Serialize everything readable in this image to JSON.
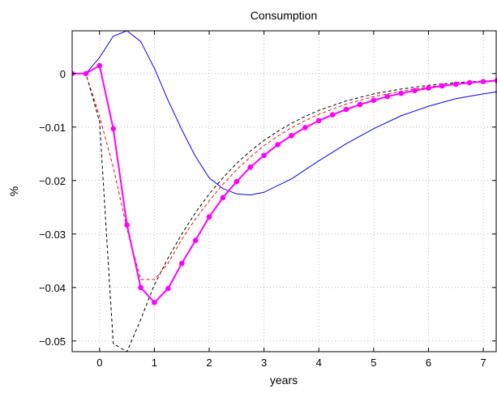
{
  "chart_data": {
    "type": "line",
    "title": "Consumption",
    "xlabel": "years",
    "ylabel": "%",
    "xlim": [
      -0.5,
      7.25
    ],
    "ylim": [
      -0.052,
      0.008
    ],
    "x_ticks": [
      0,
      1,
      2,
      3,
      4,
      5,
      6,
      7
    ],
    "x_tick_labels": [
      "0",
      "1",
      "2",
      "3",
      "4",
      "5",
      "6",
      "7"
    ],
    "y_ticks": [
      0,
      -0.01,
      -0.02,
      -0.03,
      -0.04,
      -0.05
    ],
    "y_tick_labels": [
      "0",
      "−0.01",
      "−0.02",
      "−0.03",
      "−0.04",
      "−0.05"
    ],
    "grid": true,
    "legend": "none",
    "series": [
      {
        "color": "#0000ff",
        "style": "solid",
        "x": [
          -0.5,
          -0.25,
          0,
          0.25,
          0.5,
          0.75,
          1,
          1.25,
          1.5,
          1.75,
          2,
          2.25,
          2.5,
          2.75,
          3,
          3.5,
          4,
          4.5,
          5,
          5.5,
          6,
          6.5,
          7,
          7.25
        ],
        "y": [
          0,
          0,
          0.003,
          0.007,
          0.008,
          0.006,
          0.001,
          -0.005,
          -0.0105,
          -0.0155,
          -0.0195,
          -0.0215,
          -0.0225,
          -0.0227,
          -0.0222,
          -0.0197,
          -0.0163,
          -0.0131,
          -0.0103,
          -0.0079,
          -0.0061,
          -0.0047,
          -0.0038,
          -0.0034
        ]
      },
      {
        "color": "#000000",
        "style": "dashed",
        "x": [
          -0.5,
          -0.25,
          0,
          0.25,
          0.5,
          0.75,
          1,
          1.25,
          1.5,
          1.75,
          2,
          2.25,
          2.5,
          2.75,
          3,
          3.25,
          3.5,
          3.75,
          4,
          4.5,
          5,
          5.5,
          6,
          6.5,
          7,
          7.25
        ],
        "y": [
          0,
          0,
          -0.009,
          -0.0505,
          -0.052,
          -0.046,
          -0.0395,
          -0.0345,
          -0.03,
          -0.026,
          -0.0225,
          -0.0195,
          -0.0168,
          -0.0145,
          -0.0125,
          -0.0108,
          -0.0093,
          -0.008,
          -0.0069,
          -0.0051,
          -0.0038,
          -0.0029,
          -0.0022,
          -0.0017,
          -0.0014,
          -0.0013
        ]
      },
      {
        "color": "#ff0000",
        "style": "dashed",
        "x": [
          -0.5,
          -0.25,
          0,
          0.25,
          0.5,
          0.75,
          1,
          1.25,
          1.5,
          1.75,
          2,
          2.25,
          2.5,
          2.75,
          3,
          3.25,
          3.5,
          3.75,
          4,
          4.5,
          5,
          5.5,
          6,
          6.5,
          7,
          7.25
        ],
        "y": [
          0,
          0,
          -0.008,
          -0.0175,
          -0.029,
          -0.0385,
          -0.0385,
          -0.0355,
          -0.031,
          -0.0272,
          -0.0238,
          -0.0207,
          -0.018,
          -0.0156,
          -0.0135,
          -0.0117,
          -0.0101,
          -0.0088,
          -0.0076,
          -0.0057,
          -0.0043,
          -0.0033,
          -0.0025,
          -0.0019,
          -0.0015,
          -0.0014
        ]
      },
      {
        "color": "#ff00ff",
        "style": "solid-markers",
        "x": [
          -0.5,
          -0.25,
          0,
          0.25,
          0.5,
          0.75,
          1,
          1.25,
          1.5,
          1.75,
          2,
          2.25,
          2.5,
          2.75,
          3,
          3.25,
          3.5,
          3.75,
          4,
          4.25,
          4.5,
          4.75,
          5,
          5.25,
          5.5,
          5.75,
          6,
          6.25,
          6.5,
          6.75,
          7,
          7.25
        ],
        "y": [
          0,
          0,
          0.0015,
          -0.0103,
          -0.0283,
          -0.04,
          -0.0428,
          -0.0402,
          -0.0355,
          -0.0312,
          -0.0268,
          -0.0232,
          -0.0202,
          -0.0175,
          -0.0153,
          -0.0133,
          -0.0116,
          -0.0101,
          -0.0088,
          -0.0077,
          -0.0067,
          -0.0058,
          -0.005,
          -0.0043,
          -0.0037,
          -0.0032,
          -0.0027,
          -0.0023,
          -0.002,
          -0.0017,
          -0.0015,
          -0.0013
        ]
      }
    ]
  }
}
